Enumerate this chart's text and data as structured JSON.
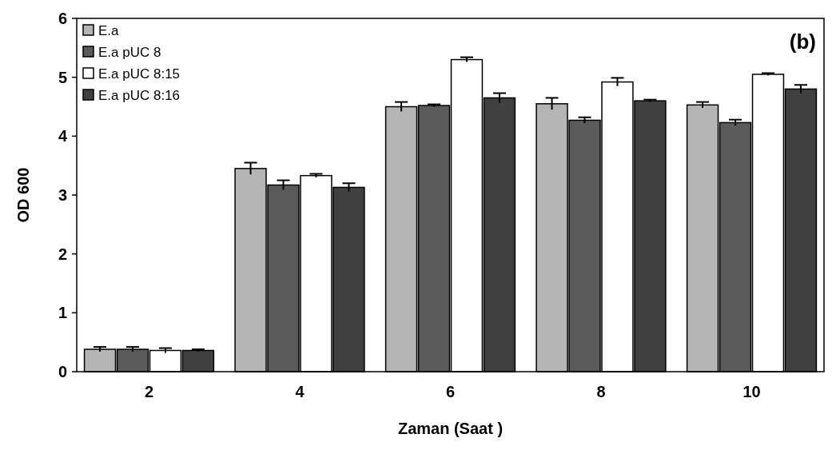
{
  "chart_data": {
    "type": "bar",
    "xlabel": "Zaman (Saat )",
    "ylabel": "OD 600",
    "annotations": [
      "(b)"
    ],
    "categories": [
      "2",
      "4",
      "6",
      "8",
      "10"
    ],
    "ylim": [
      0,
      6
    ],
    "yticks": [
      0,
      1,
      2,
      3,
      4,
      5,
      6
    ],
    "grid": false,
    "legend": "top left",
    "series": [
      {
        "name": "E.a",
        "color": "#b5b5b5",
        "values": [
          0.38,
          3.45,
          4.5,
          4.55,
          4.53
        ],
        "errors": [
          0.04,
          0.1,
          0.08,
          0.1,
          0.05
        ]
      },
      {
        "name": "E.a pUC 8",
        "color": "#5a5a5a",
        "values": [
          0.38,
          3.17,
          4.52,
          4.27,
          4.23
        ],
        "errors": [
          0.04,
          0.08,
          0.02,
          0.05,
          0.05
        ]
      },
      {
        "name": "E.a pUC 8:15",
        "color": "#ffffff",
        "values": [
          0.36,
          3.33,
          5.3,
          4.92,
          5.05
        ],
        "errors": [
          0.04,
          0.03,
          0.04,
          0.07,
          0.02
        ]
      },
      {
        "name": "E.a pUC 8:16",
        "color": "#404040",
        "values": [
          0.36,
          3.13,
          4.65,
          4.6,
          4.8
        ],
        "errors": [
          0.02,
          0.07,
          0.08,
          0.02,
          0.07
        ]
      }
    ]
  }
}
